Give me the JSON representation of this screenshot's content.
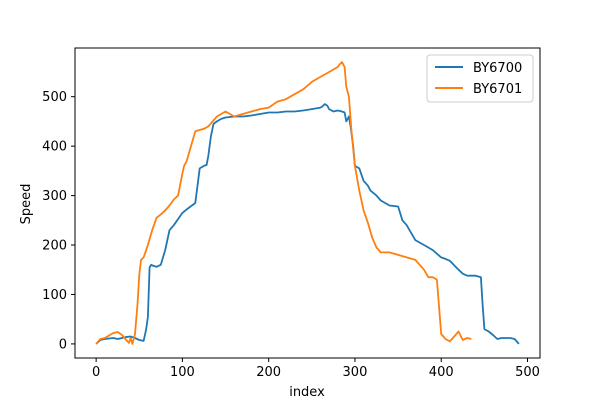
{
  "chart_data": {
    "type": "line",
    "title": "",
    "xlabel": "index",
    "ylabel": "Speed",
    "xlim": [
      -24.5,
      514.5
    ],
    "ylim": [
      -28.5,
      598.5
    ],
    "xticks": [
      0,
      100,
      200,
      300,
      400,
      500
    ],
    "yticks": [
      0,
      100,
      200,
      300,
      400,
      500
    ],
    "grid": false,
    "legend_position": "top-right",
    "series": [
      {
        "name": "BY6700",
        "color": "#1f77b4",
        "x": [
          0,
          5,
          10,
          20,
          25,
          30,
          35,
          40,
          45,
          50,
          55,
          58,
          60,
          62,
          64,
          66,
          70,
          75,
          80,
          85,
          90,
          100,
          105,
          115,
          120,
          125,
          128,
          130,
          133,
          136,
          140,
          145,
          150,
          160,
          170,
          180,
          190,
          200,
          210,
          220,
          230,
          240,
          250,
          260,
          262,
          265,
          268,
          270,
          275,
          280,
          285,
          288,
          290,
          293,
          295,
          298,
          300,
          305,
          310,
          315,
          318,
          325,
          330,
          340,
          350,
          355,
          360,
          365,
          370,
          380,
          390,
          400,
          405,
          410,
          420,
          425,
          430,
          440,
          446,
          448,
          450,
          455,
          460,
          465,
          470,
          480,
          485,
          490
        ],
        "y": [
          0,
          8,
          10,
          12,
          10,
          12,
          14,
          15,
          12,
          8,
          6,
          30,
          55,
          155,
          160,
          158,
          156,
          160,
          190,
          230,
          240,
          265,
          272,
          285,
          355,
          360,
          362,
          380,
          420,
          445,
          450,
          455,
          458,
          460,
          460,
          462,
          465,
          468,
          468,
          470,
          470,
          472,
          475,
          478,
          480,
          485,
          482,
          475,
          470,
          472,
          470,
          468,
          450,
          460,
          440,
          400,
          360,
          355,
          330,
          320,
          310,
          300,
          290,
          280,
          278,
          250,
          240,
          225,
          210,
          200,
          190,
          175,
          172,
          168,
          150,
          142,
          138,
          138,
          135,
          80,
          30,
          25,
          18,
          10,
          12,
          12,
          10,
          0
        ]
      },
      {
        "name": "BY6701",
        "color": "#ff7f0e",
        "x": [
          0,
          5,
          10,
          20,
          25,
          30,
          35,
          38,
          40,
          42,
          45,
          48,
          50,
          52,
          55,
          60,
          65,
          70,
          75,
          80,
          85,
          90,
          95,
          100,
          102,
          105,
          110,
          115,
          125,
          130,
          135,
          140,
          150,
          160,
          170,
          180,
          190,
          200,
          210,
          220,
          230,
          240,
          250,
          260,
          270,
          280,
          282,
          285,
          288,
          290,
          293,
          296,
          300,
          305,
          310,
          315,
          320,
          325,
          330,
          340,
          350,
          360,
          370,
          380,
          385,
          390,
          395,
          400,
          405,
          410,
          415,
          420,
          425,
          430,
          435
        ],
        "y": [
          0,
          10,
          12,
          22,
          24,
          18,
          8,
          2,
          12,
          0,
          20,
          80,
          140,
          170,
          175,
          200,
          230,
          255,
          262,
          270,
          280,
          292,
          300,
          345,
          360,
          370,
          400,
          430,
          435,
          440,
          450,
          460,
          470,
          460,
          465,
          470,
          475,
          478,
          490,
          495,
          505,
          515,
          530,
          540,
          550,
          560,
          565,
          570,
          560,
          520,
          500,
          430,
          360,
          310,
          270,
          245,
          215,
          195,
          185,
          185,
          180,
          175,
          170,
          150,
          135,
          135,
          130,
          20,
          10,
          5,
          15,
          25,
          8,
          12,
          10
        ]
      }
    ]
  }
}
